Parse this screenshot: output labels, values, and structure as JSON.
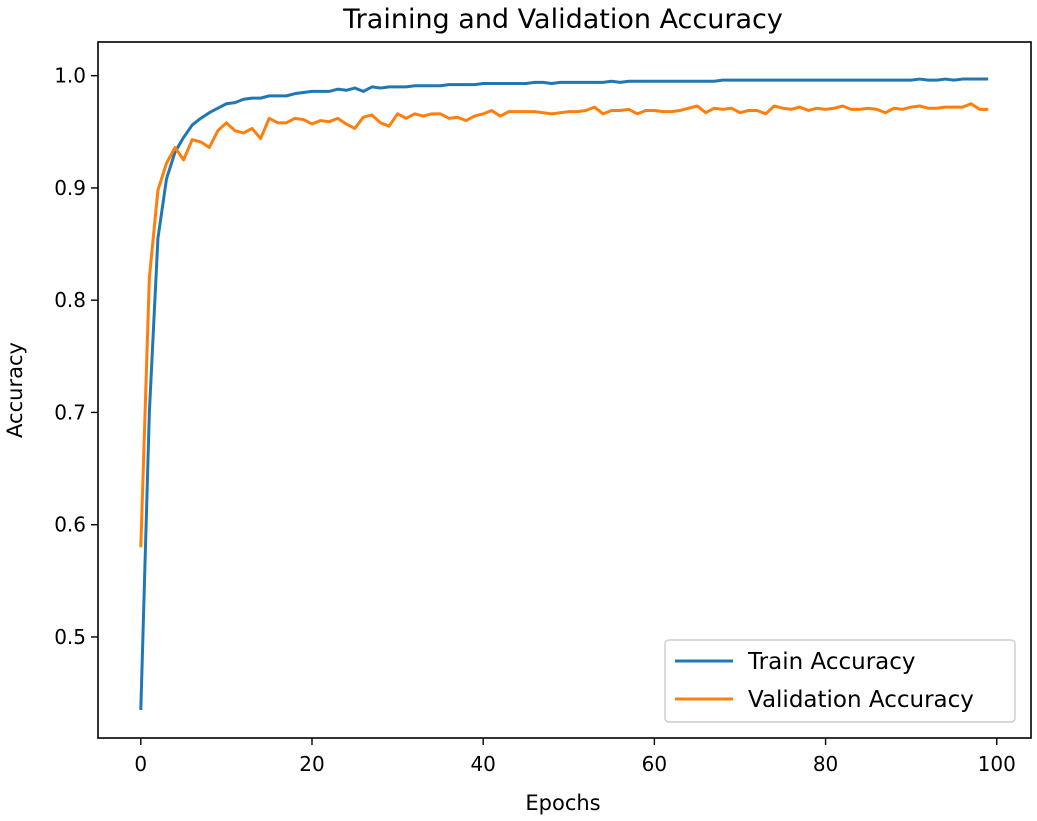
{
  "chart_data": {
    "type": "line",
    "title": "Training and Validation Accuracy",
    "xlabel": "Epochs",
    "ylabel": "Accuracy",
    "xlim": [
      -5,
      104
    ],
    "ylim": [
      0.41,
      1.03
    ],
    "xticks": [
      0,
      20,
      40,
      60,
      80,
      100
    ],
    "yticks": [
      0.5,
      0.6,
      0.7,
      0.8,
      0.9,
      1.0
    ],
    "xtick_labels": [
      "0",
      "20",
      "40",
      "60",
      "80",
      "100"
    ],
    "ytick_labels": [
      "0.5",
      "0.6",
      "0.7",
      "0.8",
      "0.9",
      "1.0"
    ],
    "grid": false,
    "legend_position": "bottom-right",
    "series": [
      {
        "name": "Train Accuracy",
        "color": "#1f77b4",
        "x": [
          0,
          1,
          2,
          3,
          4,
          5,
          6,
          7,
          8,
          9,
          10,
          11,
          12,
          13,
          14,
          15,
          16,
          17,
          18,
          19,
          20,
          21,
          22,
          23,
          24,
          25,
          26,
          27,
          28,
          29,
          30,
          31,
          32,
          33,
          34,
          35,
          36,
          37,
          38,
          39,
          40,
          41,
          42,
          43,
          44,
          45,
          46,
          47,
          48,
          49,
          50,
          51,
          52,
          53,
          54,
          55,
          56,
          57,
          58,
          59,
          60,
          61,
          62,
          63,
          64,
          65,
          66,
          67,
          68,
          69,
          70,
          71,
          72,
          73,
          74,
          75,
          76,
          77,
          78,
          79,
          80,
          81,
          82,
          83,
          84,
          85,
          86,
          87,
          88,
          89,
          90,
          91,
          92,
          93,
          94,
          95,
          96,
          97,
          98,
          99
        ],
        "values": [
          0.435,
          0.7,
          0.855,
          0.908,
          0.932,
          0.945,
          0.956,
          0.962,
          0.967,
          0.971,
          0.975,
          0.976,
          0.979,
          0.98,
          0.98,
          0.982,
          0.982,
          0.982,
          0.984,
          0.985,
          0.986,
          0.986,
          0.986,
          0.988,
          0.987,
          0.989,
          0.986,
          0.99,
          0.989,
          0.99,
          0.99,
          0.99,
          0.991,
          0.991,
          0.991,
          0.991,
          0.992,
          0.992,
          0.992,
          0.992,
          0.993,
          0.993,
          0.993,
          0.993,
          0.993,
          0.993,
          0.994,
          0.994,
          0.993,
          0.994,
          0.994,
          0.994,
          0.994,
          0.994,
          0.994,
          0.995,
          0.994,
          0.995,
          0.995,
          0.995,
          0.995,
          0.995,
          0.995,
          0.995,
          0.995,
          0.995,
          0.995,
          0.995,
          0.996,
          0.996,
          0.996,
          0.996,
          0.996,
          0.996,
          0.996,
          0.996,
          0.996,
          0.996,
          0.996,
          0.996,
          0.996,
          0.996,
          0.996,
          0.996,
          0.996,
          0.996,
          0.996,
          0.996,
          0.996,
          0.996,
          0.996,
          0.997,
          0.996,
          0.996,
          0.997,
          0.996,
          0.997,
          0.997,
          0.997,
          0.997
        ]
      },
      {
        "name": "Validation Accuracy",
        "color": "#ff7f0e",
        "x": [
          0,
          1,
          2,
          3,
          4,
          5,
          6,
          7,
          8,
          9,
          10,
          11,
          12,
          13,
          14,
          15,
          16,
          17,
          18,
          19,
          20,
          21,
          22,
          23,
          24,
          25,
          26,
          27,
          28,
          29,
          30,
          31,
          32,
          33,
          34,
          35,
          36,
          37,
          38,
          39,
          40,
          41,
          42,
          43,
          44,
          45,
          46,
          47,
          48,
          49,
          50,
          51,
          52,
          53,
          54,
          55,
          56,
          57,
          58,
          59,
          60,
          61,
          62,
          63,
          64,
          65,
          66,
          67,
          68,
          69,
          70,
          71,
          72,
          73,
          74,
          75,
          76,
          77,
          78,
          79,
          80,
          81,
          82,
          83,
          84,
          85,
          86,
          87,
          88,
          89,
          90,
          91,
          92,
          93,
          94,
          95,
          96,
          97,
          98,
          99
        ],
        "values": [
          0.58,
          0.82,
          0.898,
          0.922,
          0.936,
          0.925,
          0.943,
          0.941,
          0.936,
          0.951,
          0.958,
          0.951,
          0.949,
          0.953,
          0.944,
          0.962,
          0.958,
          0.958,
          0.962,
          0.961,
          0.957,
          0.96,
          0.959,
          0.962,
          0.957,
          0.953,
          0.963,
          0.965,
          0.958,
          0.955,
          0.966,
          0.962,
          0.966,
          0.964,
          0.966,
          0.966,
          0.962,
          0.963,
          0.96,
          0.964,
          0.966,
          0.969,
          0.964,
          0.968,
          0.968,
          0.968,
          0.968,
          0.967,
          0.966,
          0.967,
          0.968,
          0.968,
          0.969,
          0.972,
          0.966,
          0.969,
          0.969,
          0.97,
          0.966,
          0.969,
          0.969,
          0.968,
          0.968,
          0.969,
          0.971,
          0.973,
          0.967,
          0.971,
          0.97,
          0.971,
          0.967,
          0.969,
          0.969,
          0.966,
          0.973,
          0.971,
          0.97,
          0.972,
          0.969,
          0.971,
          0.97,
          0.971,
          0.973,
          0.97,
          0.97,
          0.971,
          0.97,
          0.967,
          0.971,
          0.97,
          0.972,
          0.973,
          0.971,
          0.971,
          0.972,
          0.972,
          0.972,
          0.975,
          0.97,
          0.97
        ]
      }
    ]
  }
}
